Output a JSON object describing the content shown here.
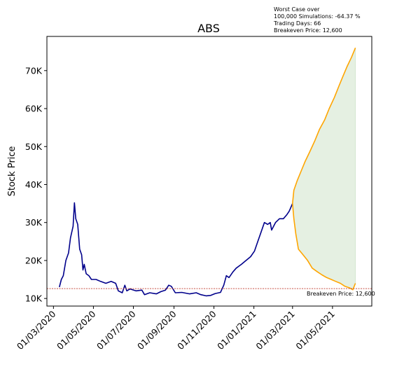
{
  "chart_data": {
    "type": "line",
    "title": "ABS",
    "xlabel": "",
    "ylabel": "Stock Price",
    "x_range": [
      "2020-02-20",
      "2021-06-30"
    ],
    "ylim": [
      8000,
      79000
    ],
    "yticks": [
      10000,
      20000,
      30000,
      40000,
      50000,
      60000,
      70000
    ],
    "ytick_labels": [
      "10K",
      "20K",
      "30K",
      "40K",
      "50K",
      "60K",
      "70K"
    ],
    "xticks": [
      "2020-03-01",
      "2020-05-01",
      "2020-07-01",
      "2020-09-01",
      "2020-11-01",
      "2021-01-01",
      "2021-03-01",
      "2021-05-01"
    ],
    "xtick_labels": [
      "01/03/2020",
      "01/05/2020",
      "01/07/2020",
      "01/09/2020",
      "01/11/2020",
      "01/01/2021",
      "01/03/2021",
      "01/05/2021"
    ],
    "grid": false,
    "annotation": {
      "lines": [
        "Worst Case over",
        "100,000 Simulations: -64.37 %",
        "Trading Days: 66",
        "Breakeven Price: 12,600"
      ]
    },
    "breakeven": {
      "value": 12600,
      "label": "Breakeven Price: 12,600",
      "color": "#c0392b"
    },
    "series": [
      {
        "name": "historical",
        "color": "#00008b",
        "points": [
          [
            "2020-03-10",
            13000
          ],
          [
            "2020-03-13",
            15000
          ],
          [
            "2020-03-16",
            16000
          ],
          [
            "2020-03-20",
            20000
          ],
          [
            "2020-03-24",
            22000
          ],
          [
            "2020-03-27",
            26000
          ],
          [
            "2020-03-31",
            29000
          ],
          [
            "2020-04-02",
            35200
          ],
          [
            "2020-04-04",
            31000
          ],
          [
            "2020-04-07",
            29500
          ],
          [
            "2020-04-10",
            23000
          ],
          [
            "2020-04-13",
            21500
          ],
          [
            "2020-04-15",
            17500
          ],
          [
            "2020-04-17",
            19000
          ],
          [
            "2020-04-20",
            16500
          ],
          [
            "2020-04-24",
            16000
          ],
          [
            "2020-04-28",
            15000
          ],
          [
            "2020-05-05",
            15000
          ],
          [
            "2020-05-12",
            14500
          ],
          [
            "2020-05-20",
            14000
          ],
          [
            "2020-05-28",
            14500
          ],
          [
            "2020-06-04",
            14000
          ],
          [
            "2020-06-08",
            12000
          ],
          [
            "2020-06-14",
            11500
          ],
          [
            "2020-06-18",
            13500
          ],
          [
            "2020-06-21",
            12000
          ],
          [
            "2020-06-26",
            12500
          ],
          [
            "2020-07-05",
            12000
          ],
          [
            "2020-07-14",
            12200
          ],
          [
            "2020-07-18",
            11000
          ],
          [
            "2020-07-26",
            11500
          ],
          [
            "2020-08-05",
            11200
          ],
          [
            "2020-08-12",
            11800
          ],
          [
            "2020-08-19",
            12200
          ],
          [
            "2020-08-24",
            13500
          ],
          [
            "2020-08-28",
            13200
          ],
          [
            "2020-09-03",
            11500
          ],
          [
            "2020-09-13",
            11600
          ],
          [
            "2020-09-25",
            11200
          ],
          [
            "2020-10-05",
            11500
          ],
          [
            "2020-10-12",
            11000
          ],
          [
            "2020-10-20",
            10700
          ],
          [
            "2020-10-27",
            10800
          ],
          [
            "2020-11-03",
            11300
          ],
          [
            "2020-11-11",
            11600
          ],
          [
            "2020-11-16",
            13500
          ],
          [
            "2020-11-20",
            16000
          ],
          [
            "2020-11-24",
            15500
          ],
          [
            "2020-11-30",
            17000
          ],
          [
            "2020-12-05",
            18000
          ],
          [
            "2020-12-13",
            19000
          ],
          [
            "2020-12-20",
            20000
          ],
          [
            "2020-12-27",
            21000
          ],
          [
            "2021-01-02",
            22500
          ],
          [
            "2021-01-07",
            25000
          ],
          [
            "2021-01-12",
            27500
          ],
          [
            "2021-01-17",
            30000
          ],
          [
            "2021-01-22",
            29500
          ],
          [
            "2021-01-26",
            30000
          ],
          [
            "2021-01-28",
            28000
          ],
          [
            "2021-02-03",
            30000
          ],
          [
            "2021-02-09",
            31000
          ],
          [
            "2021-02-15",
            31000
          ],
          [
            "2021-02-20",
            32000
          ],
          [
            "2021-02-24",
            33000
          ],
          [
            "2021-03-01",
            35000
          ]
        ]
      },
      {
        "name": "upper",
        "color": "#ffa500",
        "points": [
          [
            "2021-03-01",
            35000
          ],
          [
            "2021-03-03",
            38500
          ],
          [
            "2021-03-08",
            41000
          ],
          [
            "2021-03-14",
            43500
          ],
          [
            "2021-03-20",
            46000
          ],
          [
            "2021-03-27",
            48500
          ],
          [
            "2021-04-04",
            51500
          ],
          [
            "2021-04-11",
            54500
          ],
          [
            "2021-04-19",
            57000
          ],
          [
            "2021-04-26",
            60000
          ],
          [
            "2021-05-04",
            63000
          ],
          [
            "2021-05-11",
            66000
          ],
          [
            "2021-05-17",
            68500
          ],
          [
            "2021-05-23",
            71000
          ],
          [
            "2021-05-30",
            73500
          ],
          [
            "2021-06-05",
            76000
          ]
        ]
      },
      {
        "name": "lower",
        "color": "#ffa500",
        "points": [
          [
            "2021-03-01",
            35000
          ],
          [
            "2021-03-03",
            31000
          ],
          [
            "2021-03-06",
            27000
          ],
          [
            "2021-03-10",
            23000
          ],
          [
            "2021-03-17",
            21500
          ],
          [
            "2021-03-24",
            20000
          ],
          [
            "2021-03-31",
            18000
          ],
          [
            "2021-04-08",
            17000
          ],
          [
            "2021-04-15",
            16200
          ],
          [
            "2021-04-22",
            15500
          ],
          [
            "2021-04-29",
            15000
          ],
          [
            "2021-05-06",
            14500
          ],
          [
            "2021-05-13",
            14000
          ],
          [
            "2021-05-20",
            13200
          ],
          [
            "2021-05-27",
            12800
          ],
          [
            "2021-06-01",
            12300
          ],
          [
            "2021-06-05",
            14000
          ]
        ]
      }
    ],
    "fill_between": {
      "upper": "upper",
      "lower": "lower",
      "color": "#e5f0e2"
    }
  }
}
